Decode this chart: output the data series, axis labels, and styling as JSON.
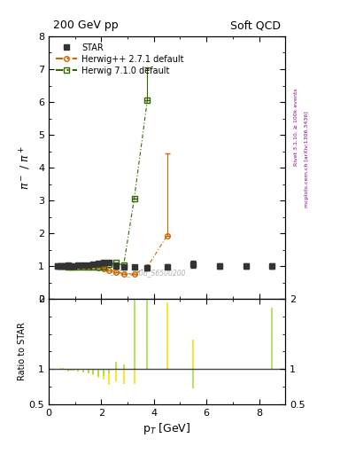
{
  "title_left": "200 GeV pp",
  "title_right": "Soft QCD",
  "ylabel_main": "pi^- / pi^+",
  "ylabel_ratio": "Ratio to STAR",
  "xlabel": "p$_{T}$ [GeV]",
  "right_label_top": "Rivet 3.1.10, ≥ 100k events",
  "right_label_bot": "mcplots.cern.ch [arXiv:1306.3436]",
  "watermark": "STAR_2006_S6500200",
  "star_x": [
    0.35,
    0.45,
    0.55,
    0.65,
    0.75,
    0.85,
    0.95,
    1.1,
    1.3,
    1.5,
    1.7,
    1.9,
    2.1,
    2.3,
    2.55,
    2.85,
    3.25,
    3.75,
    4.5,
    5.5,
    6.5,
    7.5,
    8.5
  ],
  "star_y": [
    1.01,
    1.0,
    1.0,
    1.01,
    1.02,
    1.01,
    1.01,
    1.02,
    1.03,
    1.04,
    1.05,
    1.08,
    1.1,
    1.12,
    1.0,
    0.97,
    0.97,
    0.94,
    0.99,
    1.06,
    1.0,
    1.01,
    1.0
  ],
  "star_yerr": [
    0.03,
    0.02,
    0.02,
    0.02,
    0.02,
    0.02,
    0.02,
    0.02,
    0.02,
    0.03,
    0.03,
    0.04,
    0.04,
    0.05,
    0.04,
    0.05,
    0.06,
    0.07,
    0.08,
    0.1,
    0.08,
    0.08,
    0.08
  ],
  "herwig1_x": [
    0.35,
    0.45,
    0.55,
    0.65,
    0.75,
    0.85,
    0.95,
    1.1,
    1.3,
    1.5,
    1.7,
    1.9,
    2.1,
    2.3,
    2.55,
    2.85,
    3.25,
    3.75,
    4.5
  ],
  "herwig1_y": [
    1.01,
    1.0,
    1.0,
    1.0,
    1.0,
    0.99,
    0.99,
    0.99,
    0.99,
    0.98,
    0.97,
    0.95,
    0.93,
    0.88,
    0.82,
    0.77,
    0.76,
    0.97,
    1.93
  ],
  "herwig1_yerr_lo": [
    0.0,
    0.0,
    0.0,
    0.0,
    0.0,
    0.0,
    0.0,
    0.0,
    0.0,
    0.0,
    0.0,
    0.0,
    0.0,
    0.0,
    0.0,
    0.0,
    0.0,
    0.0,
    0.0
  ],
  "herwig1_yerr_hi": [
    0.0,
    0.0,
    0.0,
    0.0,
    0.0,
    0.0,
    0.0,
    0.0,
    0.0,
    0.0,
    0.0,
    0.0,
    0.0,
    0.0,
    0.0,
    0.0,
    0.0,
    0.0,
    2.5
  ],
  "herwig2_x": [
    0.35,
    0.45,
    0.55,
    0.65,
    0.75,
    0.85,
    0.95,
    1.1,
    1.3,
    1.5,
    1.7,
    1.9,
    2.1,
    2.3,
    2.55,
    2.85,
    3.25,
    3.75
  ],
  "herwig2_y": [
    1.01,
    1.0,
    1.0,
    1.0,
    0.99,
    0.99,
    0.99,
    0.98,
    0.98,
    0.98,
    0.98,
    0.97,
    0.99,
    1.05,
    1.1,
    1.03,
    3.05,
    6.05
  ],
  "herwig2_yerr_lo": [
    0.0,
    0.0,
    0.0,
    0.0,
    0.0,
    0.0,
    0.0,
    0.0,
    0.0,
    0.0,
    0.0,
    0.0,
    0.0,
    0.0,
    0.0,
    0.0,
    0.0,
    0.0
  ],
  "herwig2_yerr_hi": [
    0.0,
    0.0,
    0.0,
    0.0,
    0.0,
    0.0,
    0.0,
    0.0,
    0.0,
    0.0,
    0.0,
    0.0,
    0.0,
    0.0,
    0.0,
    0.0,
    0.0,
    1.0
  ],
  "ratio_herwig1_x": [
    0.35,
    0.45,
    0.55,
    0.65,
    0.75,
    0.85,
    0.95,
    1.1,
    1.3,
    1.5,
    1.7,
    1.9,
    2.1,
    2.3,
    2.55,
    2.85,
    3.25,
    3.75,
    4.5,
    5.5,
    6.5,
    7.5,
    8.5
  ],
  "ratio_herwig1_y": [
    1.0,
    1.01,
    1.02,
    0.99,
    0.98,
    0.98,
    0.98,
    0.97,
    0.96,
    0.94,
    0.92,
    0.88,
    0.85,
    0.78,
    0.82,
    0.79,
    0.79,
    1.03,
    1.95,
    1.42,
    1.0,
    1.0,
    1.0
  ],
  "ratio_herwig2_x": [
    0.35,
    0.45,
    0.55,
    0.65,
    0.75,
    0.85,
    0.95,
    1.1,
    1.3,
    1.5,
    1.7,
    1.9,
    2.1,
    2.3,
    2.55,
    2.85,
    3.25,
    3.75,
    4.5,
    5.5,
    6.5,
    7.5,
    8.5
  ],
  "ratio_herwig2_y": [
    1.0,
    1.0,
    1.0,
    0.99,
    0.97,
    0.98,
    0.98,
    0.96,
    0.95,
    0.94,
    0.93,
    0.9,
    0.9,
    0.94,
    1.1,
    1.06,
    3.14,
    6.0,
    1.01,
    0.72,
    1.0,
    1.0,
    1.88
  ],
  "color_star": "#333333",
  "color_herwig1": "#cc6600",
  "color_herwig2": "#336600",
  "color_ratio_herwig1": "#ffdd00",
  "color_ratio_herwig2": "#aadd44",
  "main_ylim": [
    0,
    8
  ],
  "main_yticks": [
    0,
    1,
    2,
    3,
    4,
    5,
    6,
    7,
    8
  ],
  "ratio_ylim": [
    0.5,
    2.0
  ],
  "ratio_yticks": [
    0.5,
    1.0,
    2.0
  ],
  "xlim": [
    0,
    9
  ]
}
